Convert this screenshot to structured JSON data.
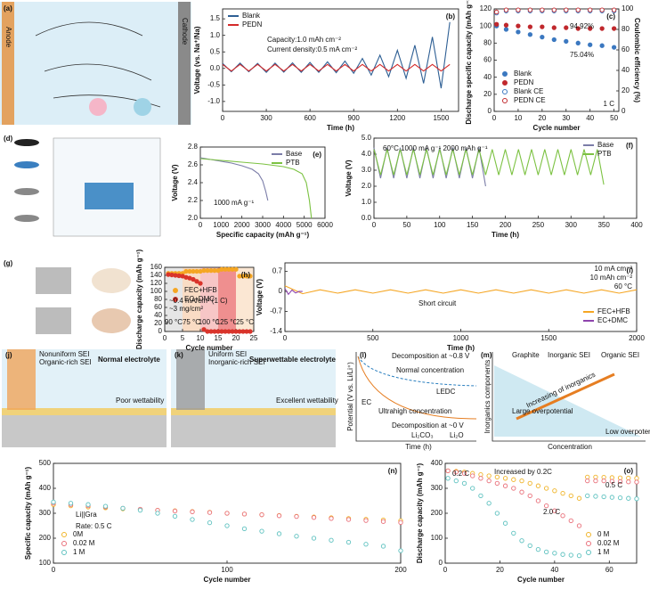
{
  "panels": {
    "a": {
      "label": "(a)",
      "anode": "Anode",
      "cathode": "Cathode"
    },
    "d": {
      "label": "(d)"
    },
    "g": {
      "label": "(g)"
    },
    "j": {
      "label": "(j)",
      "sei": "Nonuniform SEI",
      "sei_type": "Organic-rich SEI",
      "electrolyte": "Normal electrolyte",
      "wettability": "Poor wettability"
    },
    "k": {
      "label": "(k)",
      "sei": "Uniform SEI",
      "sei_type": "Inorganic-rich SEI",
      "electrolyte": "Superwettable electrolyte",
      "wettability": "Excellent wettability"
    },
    "l": {
      "label": "(l)",
      "ylabel": "Potential (V vs. Li/Li⁺)",
      "xlabel": "Time (h)",
      "decomp_high": "Decomposition at ~0.8 V",
      "normal": "Normal concentration",
      "ultrahigh": "Ultrahigh concentration",
      "decomp_low": "Decomposition at ~0 V",
      "ledc": "LEDC",
      "ec": "EC",
      "li2co3": "Li₂CO₃",
      "li2o": "Li₂O"
    },
    "m": {
      "label": "(m)",
      "graphite": "Graphite",
      "inorganic": "Inorganic SEI",
      "organic": "Organic SEI",
      "trend": "Increasing of inorganics",
      "large": "Large overpotential",
      "low": "Low overpotential",
      "ylabel": "Inorganics components",
      "xlabel": "Concentration"
    }
  },
  "chart_data": [
    {
      "type": "line",
      "label": "(b)",
      "xlabel": "Time (h)",
      "ylabel": "Voltage (vs. Na⁺/Na)",
      "xlim": [
        0,
        1620
      ],
      "xticks": [
        0,
        300,
        600,
        900,
        1200,
        1500
      ],
      "ylim": [
        -1.3,
        1.8
      ],
      "yticks": [
        {
          "value": -1,
          "label": "-1.0"
        },
        -0.5,
        {
          "value": 0,
          "label": "0.0"
        },
        0.5,
        {
          "value": 1,
          "label": "1.0"
        },
        1.5
      ],
      "legend": "upper left",
      "annotations": [
        "Capacity:1.0 mAh cm⁻²",
        "Current density:0.5 mA cm⁻²"
      ],
      "x": [
        0,
        60,
        120,
        180,
        240,
        300,
        360,
        420,
        480,
        540,
        600,
        660,
        720,
        780,
        840,
        900,
        960,
        1020,
        1080,
        1140,
        1200,
        1260,
        1320,
        1380,
        1440,
        1500,
        1560
      ],
      "series": [
        {
          "name": "Blank",
          "color": "#2e5f94",
          "values": [
            0.15,
            -0.1,
            0.16,
            -0.1,
            0.15,
            -0.12,
            0.16,
            -0.11,
            0.17,
            -0.12,
            0.18,
            -0.12,
            0.2,
            -0.13,
            0.22,
            -0.15,
            0.3,
            -0.2,
            0.4,
            -0.25,
            0.55,
            -0.3,
            0.7,
            -0.45,
            0.95,
            -0.6,
            1.4
          ]
        },
        {
          "name": "PEDN",
          "color": "#d42a2a",
          "values": [
            0.12,
            -0.08,
            0.12,
            -0.08,
            0.12,
            -0.08,
            0.12,
            -0.08,
            0.12,
            -0.08,
            0.12,
            -0.08,
            0.12,
            -0.08,
            0.12,
            -0.08,
            0.12,
            -0.08,
            0.12,
            -0.08,
            0.12,
            -0.08,
            0.12,
            -0.08,
            0.12,
            -0.08,
            0.12
          ]
        }
      ]
    },
    {
      "type": "scatter",
      "label": "(c)",
      "xlabel": "Cycle number",
      "ylabel": "Discharge specific capacity (mAh g⁻¹)",
      "y2label": "Coulombic efficiency (%)",
      "xlim": [
        0,
        52
      ],
      "xticks": [
        0,
        10,
        20,
        30,
        40,
        50
      ],
      "ylim": [
        0,
        120
      ],
      "yticks": [
        0,
        20,
        40,
        60,
        80,
        100,
        120
      ],
      "y2lim": [
        0,
        100
      ],
      "y2ticks": [
        0,
        20,
        40,
        60,
        80,
        100
      ],
      "legend": "lower left",
      "annotations": [
        "94.92%",
        "75.04%",
        "1 C"
      ],
      "x": [
        1,
        5,
        10,
        15,
        20,
        25,
        30,
        35,
        40,
        45,
        50
      ],
      "series": [
        {
          "name": "Blank",
          "color": "#3b78c0",
          "marker": "filled",
          "values": [
            100,
            96,
            93,
            90,
            87,
            84,
            82,
            80,
            78,
            77,
            75
          ]
        },
        {
          "name": "PEDN",
          "color": "#c0282d",
          "marker": "filled",
          "values": [
            102,
            101,
            100,
            99,
            99,
            98,
            98,
            97,
            97,
            97,
            97
          ]
        },
        {
          "name": "Blank CE",
          "color": "#3b78c0",
          "marker": "hollow",
          "axis": "y2",
          "values": [
            96,
            98,
            98,
            98,
            98,
            98,
            98,
            98,
            98,
            98,
            98
          ]
        },
        {
          "name": "PEDN CE",
          "color": "#c0282d",
          "marker": "hollow",
          "axis": "y2",
          "values": [
            97,
            99,
            99,
            99,
            99,
            99,
            99,
            99,
            99,
            99,
            99
          ]
        }
      ]
    },
    {
      "type": "line",
      "label": "(e)",
      "xlabel": "Specific capacity (mAh g⁻¹)",
      "ylabel": "Voltage (V)",
      "xlim": [
        0,
        6000
      ],
      "xticks": [
        0,
        1000,
        2000,
        3000,
        4000,
        5000,
        6000
      ],
      "ylim": [
        2.0,
        2.8
      ],
      "yticks": [
        {
          "value": 2,
          "label": "2.0"
        },
        2.2,
        2.4,
        2.6,
        2.8
      ],
      "legend": "upper right",
      "annotations": [
        "1000 mA g⁻¹"
      ],
      "series": [
        {
          "name": "Base",
          "color": "#7b7da8",
          "x": [
            0,
            500,
            1000,
            1500,
            2000,
            2500,
            2800,
            3000,
            3150,
            3250
          ],
          "values": [
            2.68,
            2.66,
            2.64,
            2.62,
            2.59,
            2.55,
            2.5,
            2.42,
            2.3,
            2.2
          ]
        },
        {
          "name": "PTB",
          "color": "#7cc242",
          "x": [
            0,
            1000,
            2000,
            3000,
            4000,
            4500,
            4900,
            5100,
            5250,
            5350
          ],
          "values": [
            2.67,
            2.65,
            2.63,
            2.61,
            2.58,
            2.55,
            2.5,
            2.4,
            2.2,
            2.0
          ]
        }
      ]
    },
    {
      "type": "line",
      "label": "(f)",
      "xlabel": "Time (h)",
      "ylabel": "Voltage (V)",
      "xlim": [
        0,
        400
      ],
      "xticks": [
        0,
        50,
        100,
        150,
        200,
        250,
        300,
        350,
        400
      ],
      "ylim": [
        0,
        5
      ],
      "yticks": [
        {
          "value": 0,
          "label": "0.0"
        },
        {
          "value": 1,
          "label": "1.0"
        },
        {
          "value": 2,
          "label": "2.0"
        },
        {
          "value": 3,
          "label": "3.0"
        },
        {
          "value": 4,
          "label": "4.0"
        },
        {
          "value": 5,
          "label": "5.0"
        }
      ],
      "legend": "upper right",
      "annotations": [
        "60°C 1000 mA g⁻¹  2000 mAh g⁻¹"
      ],
      "series": [
        {
          "name": "Base",
          "color": "#7b7da8",
          "x": [
            0,
            10,
            20,
            30,
            40,
            50,
            60,
            70,
            80,
            90,
            100,
            110,
            120,
            130,
            140,
            150,
            160,
            170
          ],
          "values": [
            4.4,
            2.5,
            4.4,
            2.5,
            4.4,
            2.5,
            4.4,
            2.5,
            4.4,
            2.5,
            4.4,
            2.5,
            4.4,
            2.5,
            4.4,
            2.5,
            4.4,
            2.0
          ]
        },
        {
          "name": "PTB",
          "color": "#7cc242",
          "x": [
            0,
            10,
            20,
            30,
            40,
            50,
            60,
            70,
            80,
            90,
            100,
            110,
            120,
            130,
            140,
            150,
            160,
            170,
            180,
            190,
            200,
            210,
            220,
            230,
            240,
            250,
            260,
            270,
            280,
            290,
            300,
            310,
            320,
            330,
            340,
            350
          ],
          "values": [
            4.3,
            2.7,
            4.3,
            2.7,
            4.3,
            2.7,
            4.3,
            2.7,
            4.3,
            2.7,
            4.3,
            2.7,
            4.3,
            2.7,
            4.3,
            2.7,
            4.3,
            2.7,
            4.3,
            2.7,
            4.3,
            2.7,
            4.3,
            2.7,
            4.3,
            2.7,
            4.3,
            2.7,
            4.3,
            2.7,
            4.3,
            2.7,
            4.3,
            2.7,
            4.3,
            2.1
          ]
        }
      ]
    },
    {
      "type": "scatter",
      "label": "(h)",
      "xlabel": "Cycle number",
      "ylabel": "Discharge capacity (mAh g⁻¹)",
      "xlim": [
        0,
        25
      ],
      "xticks": [
        0,
        5,
        10,
        15,
        20,
        25
      ],
      "ylim": [
        0,
        160
      ],
      "yticks": [
        0,
        20,
        40,
        60,
        80,
        100,
        120,
        140,
        160
      ],
      "legend": "center left",
      "annotations": [
        "~0.4 mA/cm² (1 C)",
        "~3 mg/cm²"
      ],
      "bands": [
        {
          "label": "90 °C",
          "xlim": [
            0,
            5
          ],
          "color": "#e6e6e6"
        },
        {
          "label": "75 °C",
          "xlim": [
            5,
            10
          ],
          "color": "#f9dcc4"
        },
        {
          "label": "100 °C",
          "xlim": [
            10,
            15
          ],
          "color": "#f7c6c6"
        },
        {
          "label": "125 °C",
          "xlim": [
            15,
            20
          ],
          "color": "#ef8f8f"
        },
        {
          "label": "25 °C",
          "xlim": [
            20,
            25
          ],
          "color": "#fbe7d3"
        }
      ],
      "x": [
        1,
        2,
        3,
        4,
        5,
        6,
        7,
        8,
        9,
        10,
        11,
        12,
        13,
        14,
        15,
        16,
        17,
        18,
        19,
        20,
        21,
        22,
        23,
        24
      ],
      "series": [
        {
          "name": "FEC+HFB",
          "color": "#f5a623",
          "marker": "filled",
          "values": [
            145,
            145,
            145,
            145,
            145,
            150,
            150,
            150,
            150,
            150,
            152,
            152,
            152,
            152,
            152,
            155,
            155,
            155,
            155,
            155,
            138,
            138,
            138,
            138
          ]
        },
        {
          "name": "EC+DMC",
          "color": "#d9342b",
          "marker": "filled",
          "values": [
            142,
            141,
            140,
            139,
            138,
            135,
            133,
            130,
            125,
            120,
            5,
            0,
            0,
            0,
            0,
            0,
            0,
            0,
            0,
            0,
            0,
            0,
            0,
            0
          ]
        }
      ]
    },
    {
      "type": "line",
      "label": "(i)",
      "xlabel": "Time (h)",
      "ylabel": "Voltage (V)",
      "xlim": [
        0,
        2000
      ],
      "xticks": [
        0,
        500,
        1000,
        1500,
        2000
      ],
      "ylim": [
        -1.4,
        1.0
      ],
      "yticks": [
        -1.4,
        -0.7,
        0,
        0.7
      ],
      "legend": "lower right",
      "annotations": [
        "10 mA cm⁻²",
        "10 mAh cm⁻²",
        "60 °C",
        "Short circuit"
      ],
      "series": [
        {
          "name": "FEC+HFB",
          "color": "#f5a623",
          "x": [
            0,
            100,
            200,
            300,
            400,
            500,
            600,
            700,
            800,
            900,
            1000,
            1100,
            1200,
            1300,
            1400,
            1500,
            1600,
            1700,
            1800,
            1900,
            2000
          ],
          "values": [
            0.2,
            -0.08,
            0.06,
            -0.06,
            0.06,
            -0.06,
            0.06,
            -0.06,
            0.06,
            -0.06,
            0.06,
            -0.06,
            0.06,
            -0.06,
            0.06,
            -0.06,
            0.06,
            -0.06,
            0.06,
            -0.06,
            0.06
          ]
        },
        {
          "name": "EC+DMC",
          "color": "#8e44ad",
          "x": [
            0,
            20,
            40,
            60,
            80,
            100
          ],
          "values": [
            0.1,
            -0.1,
            0.05,
            -0.05,
            0,
            0
          ]
        }
      ]
    },
    {
      "type": "scatter",
      "label": "(n)",
      "xlabel": "Cycle number",
      "ylabel": "Specific capacity (mAh g⁻¹)",
      "xlim": [
        0,
        200
      ],
      "xticks": [
        0,
        100,
        200
      ],
      "ylim": [
        100,
        500
      ],
      "yticks": [
        100,
        200,
        300,
        400,
        500
      ],
      "legend": "lower left",
      "annotations": [
        "Li||Gra",
        "Rate: 0.5 C"
      ],
      "x": [
        0,
        10,
        20,
        30,
        40,
        50,
        60,
        70,
        80,
        90,
        100,
        110,
        120,
        130,
        140,
        150,
        160,
        170,
        180,
        190,
        200
      ],
      "series": [
        {
          "name": "0M",
          "color": "#f0b429",
          "marker": "hollow",
          "values": [
            335,
            330,
            325,
            322,
            318,
            315,
            312,
            310,
            307,
            304,
            300,
            297,
            294,
            291,
            288,
            285,
            282,
            279,
            276,
            273,
            270
          ]
        },
        {
          "name": "0.02 M",
          "color": "#e9707a",
          "marker": "hollow",
          "values": [
            340,
            335,
            330,
            325,
            320,
            316,
            312,
            309,
            306,
            303,
            300,
            297,
            294,
            290,
            287,
            283,
            279,
            275,
            271,
            267,
            263
          ]
        },
        {
          "name": "1 M",
          "color": "#5fc2c0",
          "marker": "hollow",
          "values": [
            345,
            340,
            335,
            328,
            320,
            312,
            300,
            288,
            275,
            262,
            250,
            238,
            228,
            218,
            208,
            200,
            192,
            184,
            176,
            168,
            150
          ]
        }
      ]
    },
    {
      "type": "scatter",
      "label": "(o)",
      "xlabel": "Cycle number",
      "ylabel": "Discharge capacity (mAh g⁻¹)",
      "xlim": [
        0,
        70
      ],
      "xticks": [
        0,
        20,
        40,
        60
      ],
      "ylim": [
        0,
        400
      ],
      "yticks": [
        0,
        100,
        200,
        300,
        400
      ],
      "legend": "lower right",
      "annotations": [
        "0.2 C",
        "Increased by 0.2C",
        "2.0 C",
        "0.5 C"
      ],
      "x": [
        1,
        4,
        7,
        10,
        13,
        16,
        19,
        22,
        25,
        28,
        31,
        34,
        37,
        40,
        43,
        46,
        49,
        52,
        55,
        58,
        61,
        64,
        67,
        70
      ],
      "series": [
        {
          "name": "0 M",
          "color": "#f0b429",
          "marker": "hollow",
          "values": [
            370,
            368,
            365,
            360,
            355,
            350,
            345,
            340,
            335,
            330,
            320,
            310,
            300,
            290,
            280,
            270,
            260,
            345,
            345,
            344,
            343,
            342,
            341,
            340
          ]
        },
        {
          "name": "0.02 M",
          "color": "#e9707a",
          "marker": "hollow",
          "values": [
            370,
            365,
            360,
            350,
            340,
            330,
            320,
            310,
            300,
            285,
            270,
            250,
            230,
            210,
            190,
            170,
            150,
            330,
            330,
            330,
            328,
            327,
            326,
            325
          ]
        },
        {
          "name": "1 M",
          "color": "#5fc2c0",
          "marker": "hollow",
          "values": [
            340,
            330,
            320,
            300,
            270,
            240,
            200,
            160,
            120,
            90,
            70,
            55,
            45,
            40,
            35,
            32,
            30,
            270,
            268,
            266,
            264,
            262,
            260,
            258
          ]
        }
      ]
    }
  ]
}
